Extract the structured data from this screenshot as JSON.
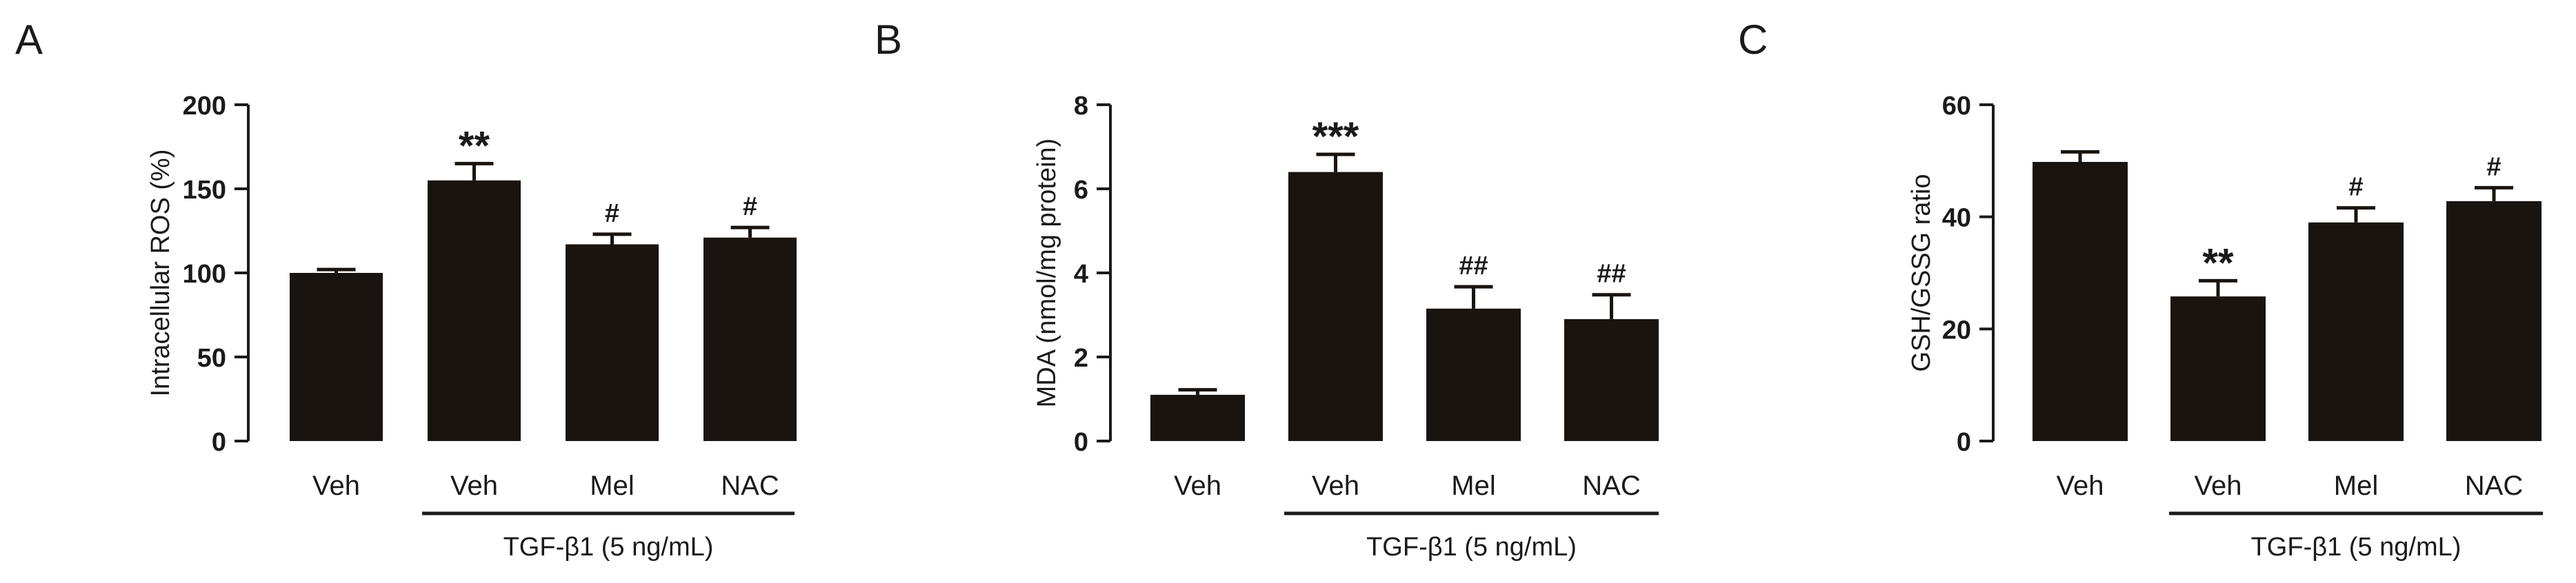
{
  "figure": {
    "bar_color": "#1a1410",
    "axis_color": "#1a1a1a"
  },
  "chart_data": [
    {
      "panel_label": "A",
      "type": "bar",
      "title": "",
      "xlabel": "",
      "ylabel": "Intracellular ROS (%)",
      "ylim": [
        0,
        200
      ],
      "yticks": [
        "0",
        "50",
        "100",
        "150",
        "200"
      ],
      "categories": [
        "Veh",
        "Veh",
        "Mel",
        "NAC"
      ],
      "values": [
        100,
        155,
        117,
        121
      ],
      "errors": [
        2,
        10,
        6,
        6
      ],
      "annotations": [
        "",
        "**",
        "#",
        "#"
      ],
      "treatment_label": "TGF-β1 (5 ng/mL)"
    },
    {
      "panel_label": "B",
      "type": "bar",
      "title": "",
      "xlabel": "",
      "ylabel": "MDA (nmol/mg protein)",
      "ylim": [
        0,
        8
      ],
      "yticks": [
        "0",
        "2",
        "4",
        "6",
        "8"
      ],
      "categories": [
        "Veh",
        "Veh",
        "Mel",
        "NAC"
      ],
      "values": [
        1.1,
        6.4,
        3.15,
        2.9
      ],
      "errors": [
        0.12,
        0.42,
        0.52,
        0.58
      ],
      "annotations": [
        "",
        "***",
        "##",
        "##"
      ],
      "treatment_label": "TGF-β1 (5 ng/mL)"
    },
    {
      "panel_label": "C",
      "type": "bar",
      "title": "",
      "xlabel": "",
      "ylabel": "GSH/GSSG ratio",
      "ylim": [
        0,
        60
      ],
      "yticks": [
        "0",
        "20",
        "40",
        "60"
      ],
      "categories": [
        "Veh",
        "Veh",
        "Mel",
        "NAC"
      ],
      "values": [
        49.8,
        25.8,
        39,
        42.8
      ],
      "errors": [
        1.8,
        2.8,
        2.6,
        2.4
      ],
      "annotations": [
        "",
        "**",
        "#",
        "#"
      ],
      "treatment_label": "TGF-β1 (5 ng/mL)"
    }
  ]
}
